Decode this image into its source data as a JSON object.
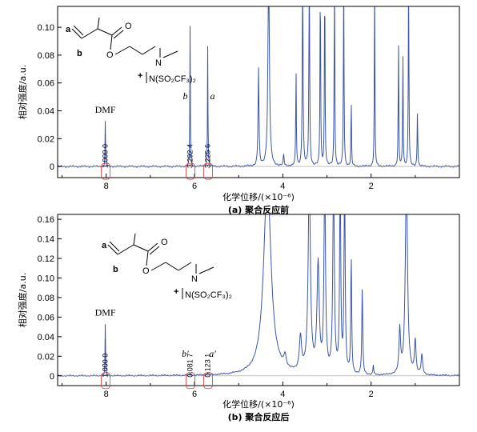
{
  "chart_data": [
    {
      "type": "line",
      "caption": "(a) 聚合反应前",
      "xlabel": "化学位移/(×10⁻⁶)",
      "ylabel": "相对强度/a.u.",
      "xlim": [
        9.1,
        0.0
      ],
      "ylim": [
        -0.008,
        0.115
      ],
      "xticks": [
        8,
        6,
        4,
        2
      ],
      "yticks": [
        0,
        0.02,
        0.04,
        0.06,
        0.08,
        0.1
      ],
      "ytick_labels": [
        "0",
        "0.02",
        "0.04",
        "0.06",
        "0.08",
        "0.10"
      ],
      "color": "#3a55a8",
      "peaks": [
        {
          "x": 8.02,
          "h": 0.034,
          "w": 0.006
        },
        {
          "x": 6.1,
          "h": 0.101,
          "w": 0.006
        },
        {
          "x": 5.7,
          "h": 0.09,
          "w": 0.006
        },
        {
          "x": 4.55,
          "h": 0.07,
          "w": 0.012
        },
        {
          "x": 4.32,
          "h": 0.14,
          "w": 0.02
        },
        {
          "x": 3.98,
          "h": 0.008,
          "w": 0.012
        },
        {
          "x": 3.7,
          "h": 0.07,
          "w": 0.008
        },
        {
          "x": 3.55,
          "h": 0.14,
          "w": 0.01
        },
        {
          "x": 3.4,
          "h": 0.14,
          "w": 0.01
        },
        {
          "x": 3.15,
          "h": 0.14,
          "w": 0.008
        },
        {
          "x": 3.05,
          "h": 0.14,
          "w": 0.008
        },
        {
          "x": 2.83,
          "h": 0.14,
          "w": 0.008
        },
        {
          "x": 2.62,
          "h": 0.14,
          "w": 0.008
        },
        {
          "x": 2.45,
          "h": 0.05,
          "w": 0.007
        },
        {
          "x": 1.92,
          "h": 0.14,
          "w": 0.007
        },
        {
          "x": 1.38,
          "h": 0.095,
          "w": 0.007
        },
        {
          "x": 1.28,
          "h": 0.085,
          "w": 0.007
        },
        {
          "x": 1.15,
          "h": 0.14,
          "w": 0.008
        },
        {
          "x": 0.95,
          "h": 0.04,
          "w": 0.008
        }
      ],
      "integrals": [
        {
          "x": 8.02,
          "label": "1.000 0"
        },
        {
          "x": 6.1,
          "label": "3.292 4"
        },
        {
          "x": 5.7,
          "label": "3.225 6"
        }
      ],
      "annotations": [
        {
          "x": 8.02,
          "text": "DMF"
        },
        {
          "x": 6.1,
          "text": "b"
        },
        {
          "x": 5.7,
          "text": "a"
        }
      ]
    },
    {
      "type": "line",
      "caption": "(b) 聚合反应后",
      "xlabel": "化学位移/(×10⁻⁶)",
      "ylabel": "相对强度/a.u.",
      "xlim": [
        9.1,
        0.0
      ],
      "ylim": [
        -0.01,
        0.165
      ],
      "xticks": [
        8,
        6,
        4,
        2
      ],
      "yticks": [
        0,
        0.02,
        0.04,
        0.06,
        0.08,
        0.1,
        0.12,
        0.14,
        0.16
      ],
      "ytick_labels": [
        "0",
        "0.02",
        "0.04",
        "0.06",
        "0.08",
        "0.10",
        "0.12",
        "0.14",
        "0.16"
      ],
      "color": "#3a55a8",
      "peaks": [
        {
          "x": 8.02,
          "h": 0.055,
          "w": 0.006
        },
        {
          "x": 6.1,
          "h": 0.002,
          "w": 0.006
        },
        {
          "x": 5.7,
          "h": 0.003,
          "w": 0.006
        },
        {
          "x": 4.35,
          "h": 0.2,
          "w": 0.1
        },
        {
          "x": 3.95,
          "h": 0.012,
          "w": 0.03
        },
        {
          "x": 3.6,
          "h": 0.035,
          "w": 0.03
        },
        {
          "x": 3.4,
          "h": 0.2,
          "w": 0.03
        },
        {
          "x": 3.2,
          "h": 0.11,
          "w": 0.03
        },
        {
          "x": 3.05,
          "h": 0.2,
          "w": 0.02
        },
        {
          "x": 2.85,
          "h": 0.2,
          "w": 0.02
        },
        {
          "x": 2.7,
          "h": 0.2,
          "w": 0.015
        },
        {
          "x": 2.6,
          "h": 0.2,
          "w": 0.015
        },
        {
          "x": 2.45,
          "h": 0.12,
          "w": 0.012
        },
        {
          "x": 2.2,
          "h": 0.09,
          "w": 0.012
        },
        {
          "x": 1.95,
          "h": 0.01,
          "w": 0.01
        },
        {
          "x": 1.35,
          "h": 0.045,
          "w": 0.02
        },
        {
          "x": 1.2,
          "h": 0.2,
          "w": 0.03
        },
        {
          "x": 1.0,
          "h": 0.035,
          "w": 0.02
        },
        {
          "x": 0.85,
          "h": 0.02,
          "w": 0.02
        }
      ],
      "integrals": [
        {
          "x": 8.02,
          "label": "1.000 0"
        },
        {
          "x": 6.1,
          "label": "0.081 7"
        },
        {
          "x": 5.7,
          "label": "0.123 1"
        }
      ],
      "annotations": [
        {
          "x": 8.02,
          "text": "DMF"
        },
        {
          "x": 6.1,
          "text": "b′"
        },
        {
          "x": 5.7,
          "text": "a′"
        }
      ]
    }
  ],
  "structure": {
    "label_a": "a",
    "label_b": "b",
    "plus": "+",
    "counterion": "N(SO₂CF₃)₂",
    "cation_n": "N",
    "minus": "−"
  }
}
